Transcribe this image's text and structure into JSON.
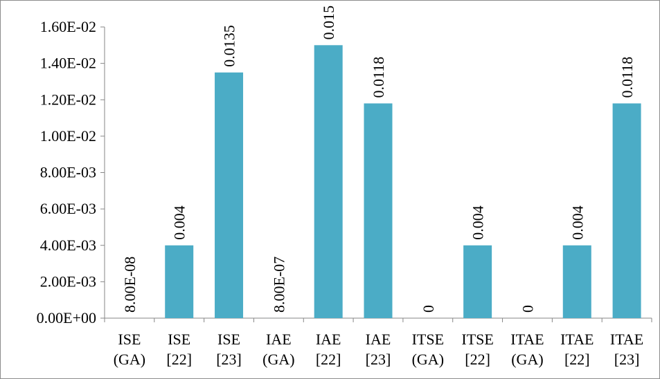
{
  "chart_data": {
    "type": "bar",
    "categories": [
      [
        "ISE",
        "(GA)"
      ],
      [
        "ISE",
        "[22]"
      ],
      [
        "ISE",
        "[23]"
      ],
      [
        "IAE",
        "(GA)"
      ],
      [
        "IAE",
        "[22]"
      ],
      [
        "IAE",
        "[23]"
      ],
      [
        "ITSE",
        "(GA)"
      ],
      [
        "ITSE",
        "[22]"
      ],
      [
        "ITAE",
        "(GA)"
      ],
      [
        "ITAE",
        "[22]"
      ],
      [
        "ITAE",
        "[23]"
      ]
    ],
    "values": [
      8e-08,
      0.004,
      0.0135,
      8e-07,
      0.015,
      0.0118,
      0,
      0.004,
      0,
      0.004,
      0.0118
    ],
    "data_labels": [
      "8.00E-08",
      "0.004",
      "0.0135",
      "8.00E-07",
      "0.015",
      "0.0118",
      "0",
      "0.004",
      "0",
      "0.004",
      "0.0118"
    ],
    "y_ticks": [
      0,
      0.002,
      0.004,
      0.006,
      0.008,
      0.01,
      0.012,
      0.014,
      0.016
    ],
    "y_tick_labels": [
      "0.00E+00",
      "2.00E-03",
      "4.00E-03",
      "6.00E-03",
      "8.00E-03",
      "1.00E-02",
      "1.20E-02",
      "1.40E-02",
      "1.60E-02"
    ],
    "ylim": [
      0,
      0.016
    ],
    "title": "",
    "xlabel": "",
    "ylabel": "",
    "grid": false,
    "legend": "none",
    "bar_color": "#4bacc6"
  }
}
